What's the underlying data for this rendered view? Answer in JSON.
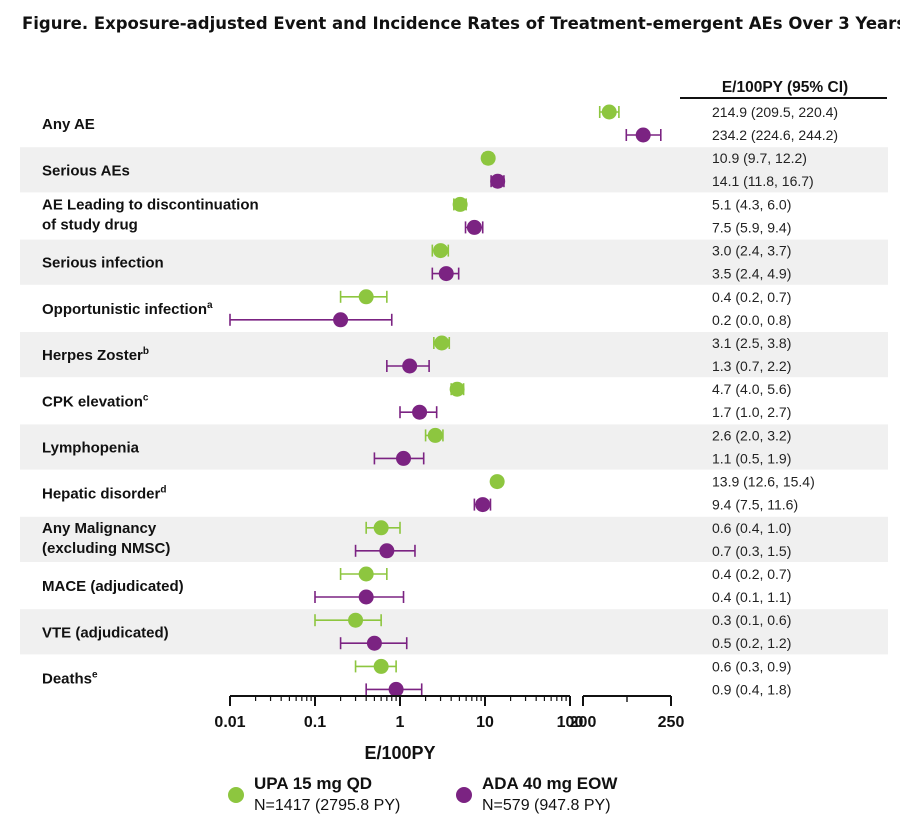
{
  "figure_title": "Figure. Exposure-adjusted Event and Incidence Rates of Treatment-emergent AEs Over 3 Years",
  "chart_data": {
    "type": "forest",
    "xlabel": "E/100PY",
    "x_scale": "log (0.01–100), broken axis continuing linear 200–250",
    "x_ticks_log": [
      "0.01",
      "0.1",
      "1",
      "10",
      "100"
    ],
    "x_ticks_linear": [
      "200",
      "250"
    ],
    "table_header": "E/100PY (95%  CI)",
    "colors": {
      "UPA": "#8dc63f",
      "ADA": "#7b2382",
      "stripe": "#f0f0f0"
    },
    "series": [
      {
        "key": "UPA",
        "name": "UPA 15 mg QD",
        "n_label": "N=1417 (2795.8 PY)"
      },
      {
        "key": "ADA",
        "name": "ADA 40 mg EOW",
        "n_label": "N=579 (947.8 PY)"
      }
    ],
    "rows": [
      {
        "label": [
          "Any AE"
        ],
        "sup": "",
        "shaded": false,
        "UPA": {
          "est": 214.9,
          "lo": 209.5,
          "hi": 220.4,
          "text": "214.9 (209.5, 220.4)"
        },
        "ADA": {
          "est": 234.2,
          "lo": 224.6,
          "hi": 244.2,
          "text": "234.2 (224.6, 244.2)"
        }
      },
      {
        "label": [
          "Serious AEs"
        ],
        "sup": "",
        "shaded": true,
        "UPA": {
          "est": 10.9,
          "lo": 9.7,
          "hi": 12.2,
          "text": "10.9 (9.7, 12.2)"
        },
        "ADA": {
          "est": 14.1,
          "lo": 11.8,
          "hi": 16.7,
          "text": "14.1 (11.8, 16.7)"
        }
      },
      {
        "label": [
          "AE Leading to discontinuation",
          "of study drug"
        ],
        "sup": "",
        "shaded": false,
        "UPA": {
          "est": 5.1,
          "lo": 4.3,
          "hi": 6.0,
          "text": "5.1 (4.3, 6.0)"
        },
        "ADA": {
          "est": 7.5,
          "lo": 5.9,
          "hi": 9.4,
          "text": "7.5 (5.9, 9.4)"
        }
      },
      {
        "label": [
          "Serious infection"
        ],
        "sup": "",
        "shaded": true,
        "UPA": {
          "est": 3.0,
          "lo": 2.4,
          "hi": 3.7,
          "text": "3.0 (2.4, 3.7)"
        },
        "ADA": {
          "est": 3.5,
          "lo": 2.4,
          "hi": 4.9,
          "text": "3.5 (2.4, 4.9)"
        }
      },
      {
        "label": [
          "Opportunistic infection"
        ],
        "sup": "a",
        "shaded": false,
        "UPA": {
          "est": 0.4,
          "lo": 0.2,
          "hi": 0.7,
          "text": "0.4 (0.2, 0.7)"
        },
        "ADA": {
          "est": 0.2,
          "lo": 0.0,
          "hi": 0.8,
          "text": "0.2 (0.0, 0.8)"
        }
      },
      {
        "label": [
          "Herpes Zoster"
        ],
        "sup": "b",
        "shaded": true,
        "UPA": {
          "est": 3.1,
          "lo": 2.5,
          "hi": 3.8,
          "text": "3.1 (2.5, 3.8)"
        },
        "ADA": {
          "est": 1.3,
          "lo": 0.7,
          "hi": 2.2,
          "text": "1.3 (0.7, 2.2)"
        }
      },
      {
        "label": [
          "CPK elevation"
        ],
        "sup": "c",
        "shaded": false,
        "UPA": {
          "est": 4.7,
          "lo": 4.0,
          "hi": 5.6,
          "text": "4.7 (4.0, 5.6)"
        },
        "ADA": {
          "est": 1.7,
          "lo": 1.0,
          "hi": 2.7,
          "text": "1.7 (1.0, 2.7)"
        }
      },
      {
        "label": [
          "Lymphopenia"
        ],
        "sup": "",
        "shaded": true,
        "UPA": {
          "est": 2.6,
          "lo": 2.0,
          "hi": 3.2,
          "text": "2.6 (2.0, 3.2)"
        },
        "ADA": {
          "est": 1.1,
          "lo": 0.5,
          "hi": 1.9,
          "text": "1.1 (0.5, 1.9)"
        }
      },
      {
        "label": [
          "Hepatic disorder"
        ],
        "sup": "d",
        "shaded": false,
        "UPA": {
          "est": 13.9,
          "lo": 12.6,
          "hi": 15.4,
          "text": "13.9 (12.6, 15.4)"
        },
        "ADA": {
          "est": 9.4,
          "lo": 7.5,
          "hi": 11.6,
          "text": "9.4 (7.5, 11.6)"
        }
      },
      {
        "label": [
          "Any Malignancy",
          "(excluding NMSC)"
        ],
        "sup": "",
        "shaded": true,
        "UPA": {
          "est": 0.6,
          "lo": 0.4,
          "hi": 1.0,
          "text": "0.6 (0.4, 1.0)"
        },
        "ADA": {
          "est": 0.7,
          "lo": 0.3,
          "hi": 1.5,
          "text": "0.7 (0.3, 1.5)"
        }
      },
      {
        "label": [
          "MACE (adjudicated)"
        ],
        "sup": "",
        "shaded": false,
        "UPA": {
          "est": 0.4,
          "lo": 0.2,
          "hi": 0.7,
          "text": "0.4 (0.2, 0.7)"
        },
        "ADA": {
          "est": 0.4,
          "lo": 0.1,
          "hi": 1.1,
          "text": "0.4 (0.1, 1.1)"
        }
      },
      {
        "label": [
          "VTE (adjudicated)"
        ],
        "sup": "",
        "shaded": true,
        "UPA": {
          "est": 0.3,
          "lo": 0.1,
          "hi": 0.6,
          "text": "0.3 (0.1, 0.6)"
        },
        "ADA": {
          "est": 0.5,
          "lo": 0.2,
          "hi": 1.2,
          "text": "0.5 (0.2, 1.2)"
        }
      },
      {
        "label": [
          "Deaths"
        ],
        "sup": "e",
        "shaded": false,
        "UPA": {
          "est": 0.6,
          "lo": 0.3,
          "hi": 0.9,
          "text": "0.6 (0.3, 0.9)"
        },
        "ADA": {
          "est": 0.9,
          "lo": 0.4,
          "hi": 1.8,
          "text": "0.9 (0.4, 1.8)"
        }
      }
    ]
  }
}
